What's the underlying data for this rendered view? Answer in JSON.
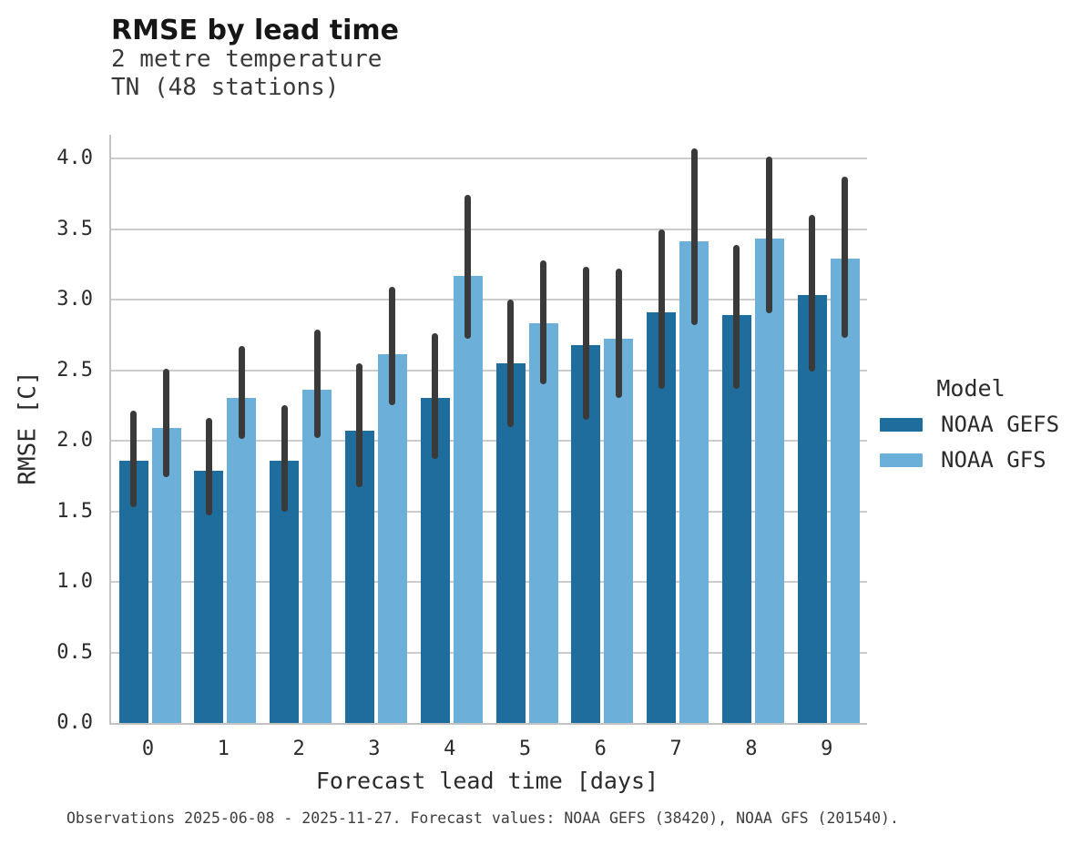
{
  "chart_data": {
    "type": "bar",
    "title": "RMSE by lead time",
    "subtitle": [
      "2 metre temperature",
      "TN (48 stations)"
    ],
    "xlabel": "Forecast lead time [days]",
    "ylabel": "RMSE [C]",
    "categories": [
      "0",
      "1",
      "2",
      "3",
      "4",
      "5",
      "6",
      "7",
      "8",
      "9"
    ],
    "ylim": [
      0,
      4.17
    ],
    "yticks": [
      "0.0",
      "0.5",
      "1.0",
      "1.5",
      "2.0",
      "2.5",
      "3.0",
      "3.5",
      "4.0"
    ],
    "grid": "horizontal",
    "legend": {
      "title": "Model",
      "position": "center-right"
    },
    "series": [
      {
        "name": "NOAA GEFS",
        "color": "#1e6d9d",
        "values": [
          1.86,
          1.79,
          1.86,
          2.07,
          2.3,
          2.55,
          2.68,
          2.91,
          2.89,
          3.03
        ],
        "err_low": [
          1.53,
          1.47,
          1.5,
          1.67,
          1.87,
          2.1,
          2.15,
          2.37,
          2.37,
          2.49
        ],
        "err_high": [
          2.21,
          2.16,
          2.25,
          2.55,
          2.76,
          3.0,
          3.23,
          3.5,
          3.39,
          3.6
        ]
      },
      {
        "name": "NOAA GFS",
        "color": "#6cafd8",
        "values": [
          2.09,
          2.3,
          2.36,
          2.61,
          3.17,
          2.83,
          2.72,
          3.41,
          3.43,
          3.29
        ],
        "err_low": [
          1.74,
          2.01,
          2.02,
          2.25,
          2.72,
          2.4,
          2.3,
          2.82,
          2.9,
          2.73
        ],
        "err_high": [
          2.51,
          2.67,
          2.79,
          3.09,
          3.74,
          3.28,
          3.22,
          4.07,
          4.01,
          3.87
        ]
      }
    ],
    "error_bar_color": "#3a3a3a",
    "footnote": "Observations 2025-06-08 - 2025-11-27. Forecast values: NOAA GEFS (38420), NOAA GFS (201540)."
  }
}
